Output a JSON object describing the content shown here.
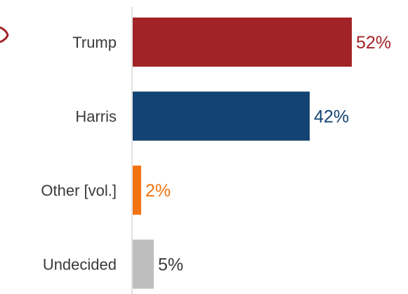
{
  "chart_data": {
    "type": "bar",
    "orientation": "horizontal",
    "categories": [
      "Trump",
      "Harris",
      "Other [vol.]",
      "Undecided"
    ],
    "values": [
      52,
      42,
      2,
      5
    ],
    "value_labels": [
      "52%",
      "42%",
      "2%",
      "5%"
    ],
    "colors": [
      "#a22327",
      "#134372",
      "#f5730f",
      "#bebebe"
    ],
    "label_colors": [
      "#a22327",
      "#134372",
      "#f5730f",
      "#3a3a3a"
    ],
    "xlim": [
      0,
      54
    ],
    "title": "",
    "xlabel": "",
    "ylabel": "",
    "grid": false,
    "legend": "none"
  }
}
